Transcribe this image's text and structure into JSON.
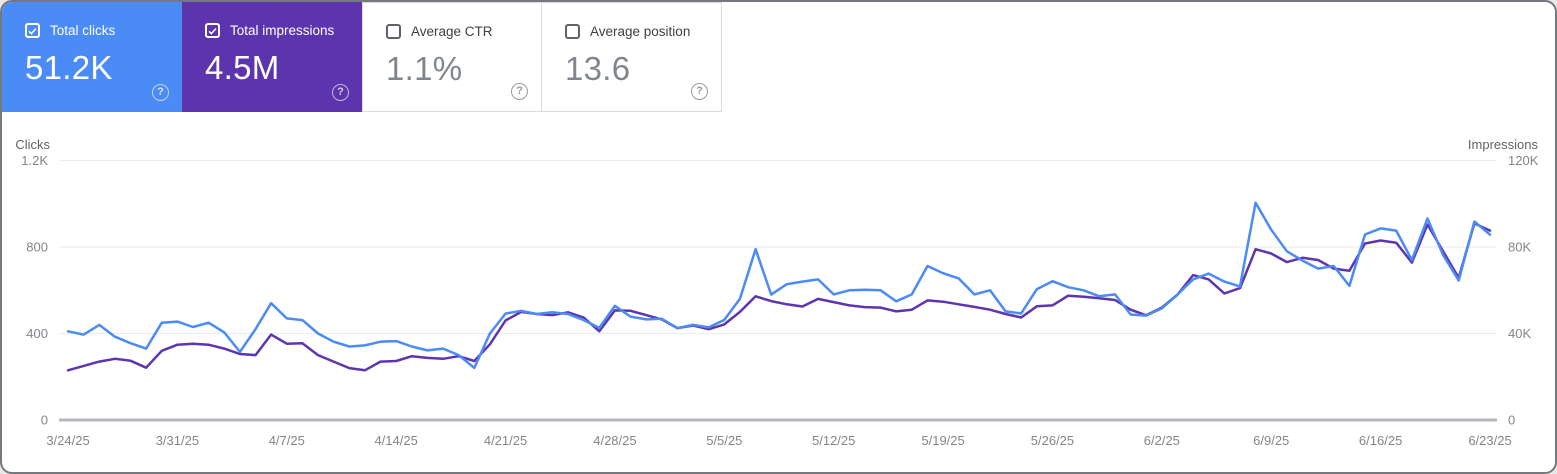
{
  "cards": [
    {
      "label": "Total clicks",
      "value": "51.2K",
      "checked": true,
      "selected": true,
      "color": "#4b8bf5"
    },
    {
      "label": "Total impressions",
      "value": "4.5M",
      "checked": true,
      "selected": true,
      "color": "#5c34ae"
    },
    {
      "label": "Average CTR",
      "value": "1.1%",
      "checked": false,
      "selected": false
    },
    {
      "label": "Average position",
      "value": "13.6",
      "checked": false,
      "selected": false
    }
  ],
  "help_glyph": "?",
  "chart_data": {
    "type": "line",
    "grid": true,
    "legend_position": "none",
    "left_axis": {
      "title": "Clicks",
      "tick_labels": [
        "1.2K",
        "800",
        "400",
        "0"
      ],
      "max": 1200
    },
    "right_axis": {
      "title": "Impressions",
      "tick_labels": [
        "120K",
        "80K",
        "40K",
        "0"
      ],
      "max": 120000
    },
    "x_tick_labels": [
      "3/24/25",
      "3/31/25",
      "4/7/25",
      "4/14/25",
      "4/21/25",
      "4/28/25",
      "5/5/25",
      "5/12/25",
      "5/19/25",
      "5/26/25",
      "6/2/25",
      "6/9/25",
      "6/16/25",
      "6/23/25"
    ],
    "series": [
      {
        "name": "Total impressions",
        "axis": "right",
        "color": "#5e35b1",
        "values": [
          23000,
          25000,
          27000,
          28300,
          27400,
          24200,
          32000,
          34800,
          35300,
          34800,
          33000,
          30500,
          30000,
          39500,
          35300,
          35500,
          30000,
          27000,
          24000,
          23000,
          27000,
          27300,
          29500,
          28700,
          28300,
          29500,
          27300,
          35000,
          46000,
          50000,
          49000,
          48500,
          49800,
          47400,
          41000,
          50700,
          50500,
          48500,
          46500,
          42500,
          43700,
          42000,
          44200,
          50000,
          57200,
          55000,
          53500,
          52500,
          56000,
          54500,
          53000,
          52200,
          52000,
          50200,
          51000,
          55300,
          54700,
          53500,
          52300,
          51000,
          49000,
          47400,
          52600,
          53000,
          57500,
          57000,
          56300,
          55500,
          51000,
          48400,
          52000,
          58000,
          67000,
          65000,
          58500,
          61000,
          79000,
          77000,
          73000,
          75000,
          74000,
          70000,
          69000,
          81600,
          83000,
          82000,
          72800,
          90400,
          78000,
          65800,
          90900,
          87600
        ]
      },
      {
        "name": "Total clicks",
        "axis": "left",
        "color": "#4b8bf5",
        "values": [
          410,
          395,
          440,
          385,
          355,
          330,
          450,
          455,
          430,
          450,
          405,
          315,
          420,
          540,
          470,
          462,
          400,
          362,
          340,
          345,
          362,
          365,
          340,
          322,
          330,
          300,
          241,
          400,
          492,
          505,
          490,
          498,
          490,
          462,
          426,
          528,
          478,
          465,
          468,
          425,
          440,
          428,
          463,
          560,
          790,
          580,
          628,
          640,
          650,
          581,
          600,
          602,
          600,
          549,
          581,
          712,
          679,
          655,
          581,
          600,
          502,
          493,
          605,
          642,
          614,
          600,
          572,
          581,
          488,
          483,
          516,
          580,
          650,
          677,
          640,
          618,
          1005,
          880,
          780,
          737,
          700,
          712,
          620,
          858,
          886,
          876,
          740,
          932,
          763,
          645,
          918,
          857
        ]
      }
    ]
  }
}
